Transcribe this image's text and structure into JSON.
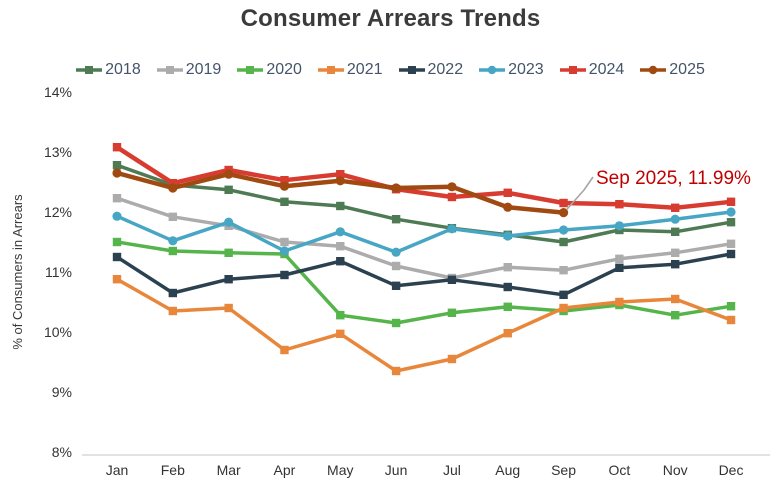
{
  "title": "Consumer Arrears Trends",
  "annotation": {
    "text": "Sep 2025, 11.99%",
    "color": "#c00000",
    "leader_color": "#a6a6a6",
    "target_series": "2025",
    "target_month": "Sep",
    "target_value": 11.99
  },
  "chart_data": {
    "type": "line",
    "title": "Consumer Arrears Trends",
    "xlabel": "",
    "ylabel": "% of Consumers in Arrears",
    "x": [
      "Jan",
      "Feb",
      "Mar",
      "Apr",
      "May",
      "Jun",
      "Jul",
      "Aug",
      "Sep",
      "Oct",
      "Nov",
      "Dec"
    ],
    "ylim": [
      8,
      14
    ],
    "yticks": [
      14,
      13,
      12,
      11,
      10,
      9,
      8
    ],
    "ytick_suffix": "%",
    "grid": false,
    "legend_position": "top",
    "axis_line_color": "#d9d9d9",
    "series": [
      {
        "name": "2018",
        "color": "#4e7b54",
        "marker": "square",
        "emphasis": false,
        "values": [
          12.78,
          12.45,
          12.37,
          12.17,
          12.1,
          11.88,
          11.73,
          11.62,
          11.5,
          11.7,
          11.67,
          11.83
        ]
      },
      {
        "name": "2019",
        "color": "#acacac",
        "marker": "square",
        "emphasis": false,
        "values": [
          12.23,
          11.92,
          11.77,
          11.5,
          11.43,
          11.1,
          10.9,
          11.08,
          11.03,
          11.22,
          11.32,
          11.47
        ]
      },
      {
        "name": "2020",
        "color": "#55b44a",
        "marker": "square",
        "emphasis": false,
        "values": [
          11.5,
          11.35,
          11.32,
          11.3,
          10.28,
          10.15,
          10.32,
          10.42,
          10.35,
          10.45,
          10.28,
          10.43
        ]
      },
      {
        "name": "2021",
        "color": "#e8873b",
        "marker": "square",
        "emphasis": false,
        "values": [
          10.88,
          10.35,
          10.4,
          9.7,
          9.97,
          9.35,
          9.55,
          9.98,
          10.4,
          10.5,
          10.55,
          10.2
        ]
      },
      {
        "name": "2022",
        "color": "#2c4150",
        "marker": "square",
        "emphasis": false,
        "values": [
          11.25,
          10.65,
          10.88,
          10.95,
          11.18,
          10.77,
          10.87,
          10.75,
          10.62,
          11.07,
          11.13,
          11.3
        ]
      },
      {
        "name": "2023",
        "color": "#47a6c4",
        "marker": "circle",
        "emphasis": false,
        "values": [
          11.93,
          11.52,
          11.83,
          11.35,
          11.67,
          11.33,
          11.72,
          11.6,
          11.7,
          11.77,
          11.88,
          12.0
        ]
      },
      {
        "name": "2024",
        "color": "#d83c30",
        "marker": "square",
        "emphasis": true,
        "values": [
          13.08,
          12.48,
          12.7,
          12.53,
          12.63,
          12.38,
          12.25,
          12.32,
          12.15,
          12.13,
          12.07,
          12.17
        ]
      },
      {
        "name": "2025",
        "color": "#a04a12",
        "marker": "circle",
        "emphasis": true,
        "values": [
          12.65,
          12.4,
          12.63,
          12.43,
          12.52,
          12.4,
          12.42,
          12.08,
          11.99
        ]
      }
    ]
  }
}
